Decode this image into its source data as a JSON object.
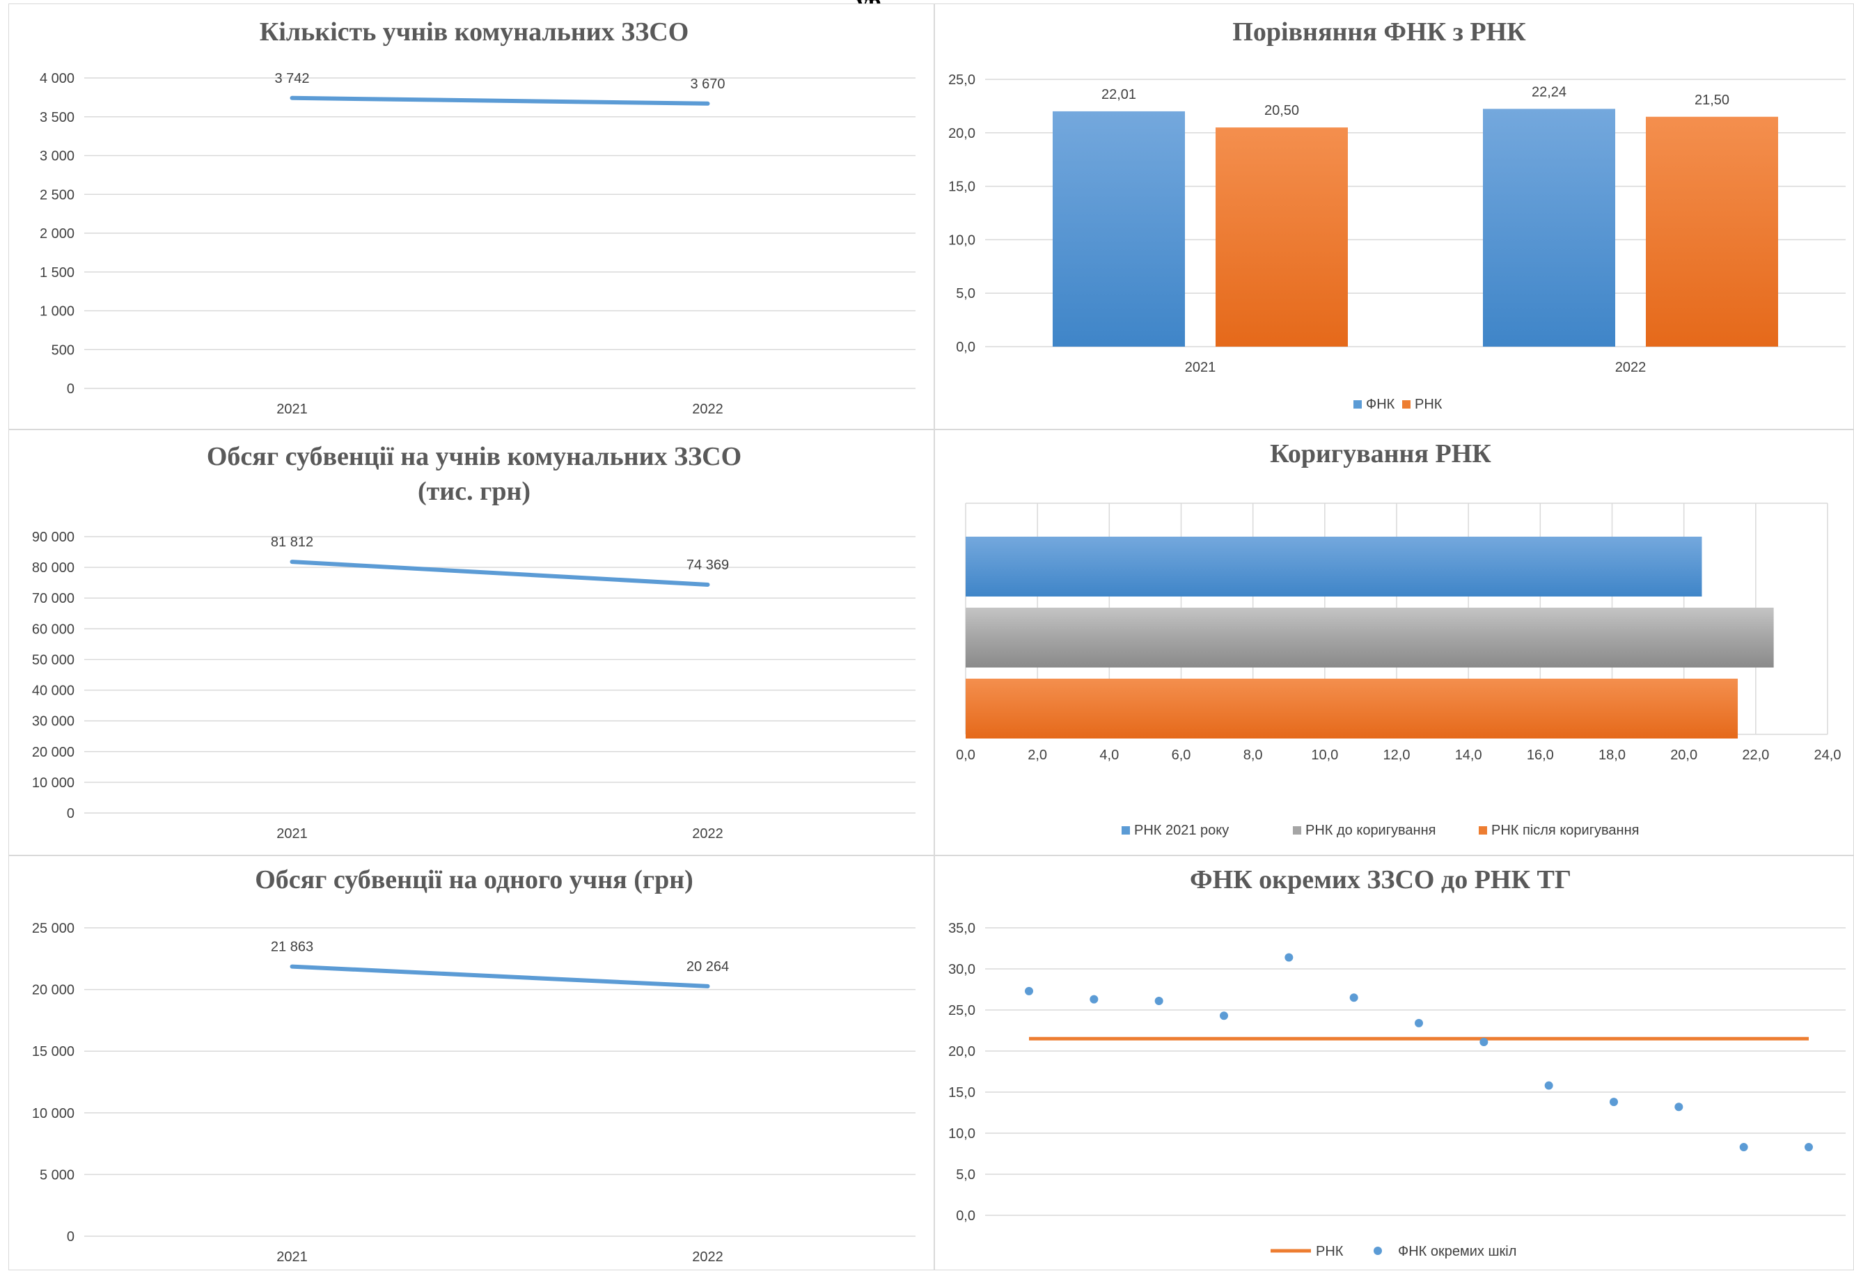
{
  "page": {
    "title_fragment": "ур"
  },
  "chart_data": [
    {
      "id": "students",
      "type": "line",
      "title": "Кількість учнів комунальних ЗЗСО",
      "categories": [
        "2021",
        "2022"
      ],
      "series": [
        {
          "values": [
            3742,
            3670
          ],
          "labels": [
            "3 742",
            "3 670"
          ],
          "color": "#5B9BD5"
        }
      ],
      "yticks": [
        "0",
        "500",
        "1 000",
        "1 500",
        "2 000",
        "2 500",
        "3 000",
        "3 500",
        "4 000"
      ],
      "ylim": [
        0,
        4000
      ],
      "grid": true,
      "legend": "none"
    },
    {
      "id": "fnk-rnk",
      "type": "bar",
      "title": "Порівняння ФНК з РНК",
      "categories": [
        "2021",
        "2022"
      ],
      "series": [
        {
          "name": "ФНК",
          "values": [
            22.01,
            22.24
          ],
          "labels": [
            "22,01",
            "22,24"
          ],
          "color": "#5B9BD5"
        },
        {
          "name": "РНК",
          "values": [
            20.5,
            21.5
          ],
          "labels": [
            "20,50",
            "21,50"
          ],
          "color": "#ED7D31"
        }
      ],
      "yticks": [
        "0,0",
        "5,0",
        "10,0",
        "15,0",
        "20,0",
        "25,0"
      ],
      "ylim": [
        0,
        25
      ],
      "grid": true,
      "legend": "bottom"
    },
    {
      "id": "subvention-total",
      "type": "line",
      "title": [
        "Обсяг субвенції на учнів комунальних ЗЗСО",
        "(тис. грн)"
      ],
      "categories": [
        "2021",
        "2022"
      ],
      "series": [
        {
          "values": [
            81812,
            74369
          ],
          "labels": [
            "81 812",
            "74 369"
          ],
          "color": "#5B9BD5"
        }
      ],
      "yticks": [
        "0",
        "10 000",
        "20 000",
        "30 000",
        "40 000",
        "50 000",
        "60 000",
        "70 000",
        "80 000",
        "90 000"
      ],
      "ylim": [
        0,
        90000
      ],
      "grid": true,
      "legend": "none"
    },
    {
      "id": "rnk-adjust",
      "type": "bar",
      "orientation": "horizontal",
      "title": "Коригування РНК",
      "series": [
        {
          "name": "РНК 2021 року",
          "value": 20.5,
          "color": "#5B9BD5"
        },
        {
          "name": "РНК до коригування",
          "value": 22.5,
          "color": "#A5A5A5"
        },
        {
          "name": "РНК після коригування",
          "value": 21.5,
          "color": "#ED7D31"
        }
      ],
      "xticks": [
        "0,0",
        "2,0",
        "4,0",
        "6,0",
        "8,0",
        "10,0",
        "12,0",
        "14,0",
        "16,0",
        "18,0",
        "20,0",
        "22,0",
        "24,0"
      ],
      "xlim": [
        0,
        24
      ],
      "grid": true,
      "legend": "bottom"
    },
    {
      "id": "subvention-per-student",
      "type": "line",
      "title": "Обсяг субвенції на одного учня (грн)",
      "categories": [
        "2021",
        "2022"
      ],
      "series": [
        {
          "values": [
            21863,
            20264
          ],
          "labels": [
            "21 863",
            "20 264"
          ],
          "color": "#5B9BD5"
        }
      ],
      "yticks": [
        "0",
        "5 000",
        "10 000",
        "15 000",
        "20 000",
        "25 000"
      ],
      "ylim": [
        0,
        25000
      ],
      "grid": true,
      "legend": "none"
    },
    {
      "id": "fnk-schools",
      "type": "scatter",
      "title": "ФНК окремих ЗЗСО до РНК ТГ",
      "series": [
        {
          "name": "РНК",
          "kind": "line",
          "x": [
            1,
            13
          ],
          "values": [
            21.5,
            21.5
          ],
          "color": "#ED7D31"
        },
        {
          "name": "ФНК окремих шкіл",
          "kind": "scatter",
          "x": [
            1,
            2,
            3,
            4,
            5,
            6,
            7,
            8,
            9,
            10,
            11,
            12,
            13
          ],
          "values": [
            27.3,
            26.3,
            26.1,
            24.3,
            31.4,
            26.5,
            23.4,
            21.1,
            15.8,
            13.8,
            13.2,
            8.3,
            8.3
          ],
          "color": "#5B9BD5"
        }
      ],
      "yticks": [
        "0,0",
        "5,0",
        "10,0",
        "15,0",
        "20,0",
        "25,0",
        "30,0",
        "35,0"
      ],
      "ylim": [
        0,
        35
      ],
      "xlim": [
        1,
        13
      ],
      "grid": true,
      "legend": "bottom"
    }
  ]
}
